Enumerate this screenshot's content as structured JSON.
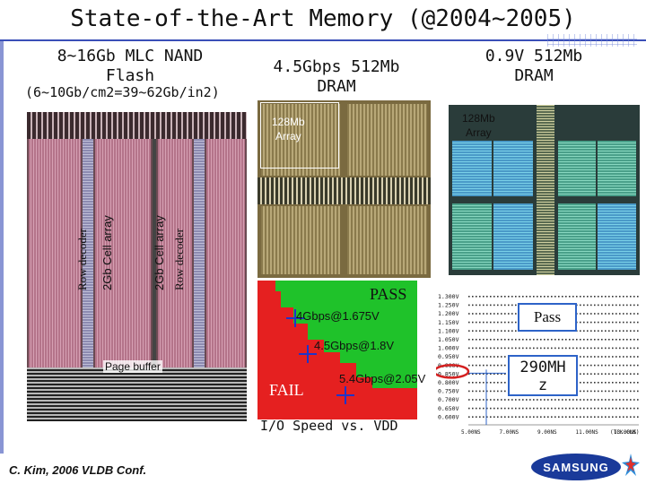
{
  "slide": {
    "title": "State-of-the-Art Memory (@2004~2005)",
    "citation": "C. Kim, 2006 VLDB Conf.",
    "logo_text": "SAMSUNG"
  },
  "nand": {
    "heading_line1": "8~16Gb MLC NAND",
    "heading_line2": "Flash",
    "density": "(6~10Gb/cm2=39~62Gb/in2)",
    "labels": {
      "row_decoder_left": "Row decoder",
      "cell_array_left": "2Gb Cell array",
      "cell_array_right": "2Gb Cell array",
      "row_decoder_right": "Row decoder",
      "page_buffer": "Page buffer"
    }
  },
  "dram_512": {
    "heading_line1": "4.5Gbps 512Mb",
    "heading_line2": "DRAM",
    "array_label_line1": "128Mb",
    "array_label_line2": "Array"
  },
  "dram_09v": {
    "heading_line1": "0.9V 512Mb",
    "heading_line2": "DRAM",
    "array_label_line1": "128Mb",
    "array_label_line2": "Array"
  },
  "shmoo": {
    "pass_label": "PASS",
    "fail_label": "FAIL",
    "points": [
      "4Gbps@1.675V",
      "4.5Gbps@1.8V",
      "5.4Gbps@2.05V"
    ],
    "axis_caption": "I/O Speed vs. VDD",
    "colors": {
      "pass": "#1fc22a",
      "fail": "#e52020",
      "marker": "#1f34c8"
    }
  },
  "tester": {
    "pass_label": "Pass",
    "freq_line1": "290MH",
    "freq_line2": "z",
    "y_labels": [
      "1.300V",
      "1.250V",
      "1.200V",
      "1.150V",
      "1.100V",
      "1.050V",
      "1.000V",
      "0.950V",
      "0.900V",
      "0.850V",
      "0.800V",
      "0.750V",
      "0.700V",
      "0.650V",
      "0.600V"
    ],
    "x_labels": [
      "5.00NS",
      "7.00NS",
      "9.00NS",
      "11.00NS",
      "13.00NS"
    ],
    "x_unit": "(TCK.CLK)",
    "colors": {
      "highlight": "#d42020",
      "frame": "#2d63c8"
    }
  }
}
